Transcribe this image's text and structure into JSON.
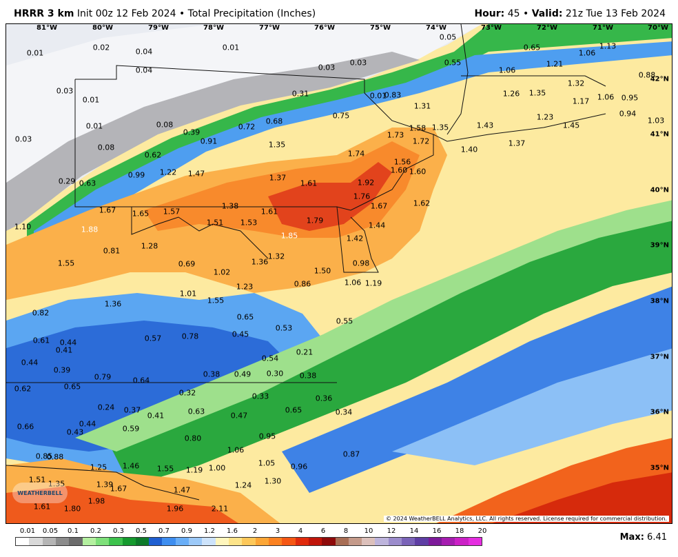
{
  "header": {
    "model": "HRRR 3 km",
    "init": "Init 00z 12 Feb 2024",
    "bullet": "•",
    "product": "Total Precipitation (Inches)",
    "hour_label": "Hour:",
    "hour_value": "45",
    "valid_label": "Valid:",
    "valid_value": "21z Tue 13 Feb 2024"
  },
  "longitude_ticks": [
    "81°W",
    "80°W",
    "79°W",
    "78°W",
    "77°W",
    "76°W",
    "75°W",
    "74°W",
    "73°W",
    "72°W",
    "71°W",
    "70°W"
  ],
  "latitude_ticks": [
    "42°N",
    "41°N",
    "40°N",
    "39°N",
    "38°N",
    "37°N",
    "36°N",
    "35°N"
  ],
  "precip_labels": [
    {
      "t": "0.01"
    },
    {
      "t": "0.02"
    },
    {
      "t": "0.04"
    },
    {
      "t": "0.01"
    },
    {
      "t": "0.05"
    },
    {
      "t": "0.65"
    },
    {
      "t": "1.06"
    },
    {
      "t": "1.13"
    },
    {
      "t": "0.04"
    },
    {
      "t": "0.03"
    },
    {
      "t": "0.03"
    },
    {
      "t": "0.55"
    },
    {
      "t": "1.06"
    },
    {
      "t": "1.21"
    },
    {
      "t": "0.88"
    },
    {
      "t": "0.03"
    },
    {
      "t": "0.01"
    },
    {
      "t": "0.31"
    },
    {
      "t": "0.83"
    },
    {
      "t": "1.26"
    },
    {
      "t": "1.35"
    },
    {
      "t": "1.32"
    },
    {
      "t": "1.31"
    },
    {
      "t": "1.17"
    },
    {
      "t": "1.06"
    },
    {
      "t": "0.95"
    },
    {
      "t": "0.94"
    },
    {
      "t": "1.03"
    },
    {
      "t": "0.01"
    },
    {
      "t": "0.01"
    },
    {
      "t": "0.08"
    },
    {
      "t": "0.39"
    },
    {
      "t": "0.72"
    },
    {
      "t": "0.68"
    },
    {
      "t": "0.75"
    },
    {
      "t": "1.35"
    },
    {
      "t": "1.43"
    },
    {
      "t": "1.23"
    },
    {
      "t": "1.45"
    },
    {
      "t": "0.03"
    },
    {
      "t": "0.91"
    },
    {
      "t": "1.73"
    },
    {
      "t": "1.58"
    },
    {
      "t": "1.72"
    },
    {
      "t": "1.37"
    },
    {
      "t": "1.40"
    },
    {
      "t": "0.08"
    },
    {
      "t": "0.62"
    },
    {
      "t": "1.35"
    },
    {
      "t": "1.74"
    },
    {
      "t": "1.56"
    },
    {
      "t": "1.60"
    },
    {
      "t": "1.60"
    },
    {
      "t": "0.99"
    },
    {
      "t": "1.22"
    },
    {
      "t": "1.47"
    },
    {
      "t": "0.29"
    },
    {
      "t": "0.63"
    },
    {
      "t": "1.37"
    },
    {
      "t": "1.61"
    },
    {
      "t": "1.92"
    },
    {
      "t": "1.76"
    },
    {
      "t": "1.67"
    },
    {
      "t": "1.62"
    },
    {
      "t": "1.67"
    },
    {
      "t": "1.65"
    },
    {
      "t": "1.57"
    },
    {
      "t": "1.38"
    },
    {
      "t": "1.61"
    },
    {
      "t": "1.10"
    },
    {
      "t": "1.88"
    },
    {
      "t": "1.51"
    },
    {
      "t": "1.53"
    },
    {
      "t": "1.79"
    },
    {
      "t": "1.44"
    },
    {
      "t": "1.85"
    },
    {
      "t": "1.42"
    },
    {
      "t": "1.28"
    },
    {
      "t": "0.81"
    },
    {
      "t": "1.32"
    },
    {
      "t": "1.55"
    },
    {
      "t": "0.69"
    },
    {
      "t": "1.36"
    },
    {
      "t": "0.98"
    },
    {
      "t": "1.02"
    },
    {
      "t": "1.50"
    },
    {
      "t": "1.23"
    },
    {
      "t": "0.86"
    },
    {
      "t": "1.06"
    },
    {
      "t": "1.19"
    },
    {
      "t": "1.01"
    },
    {
      "t": "1.55"
    },
    {
      "t": "1.36"
    },
    {
      "t": "0.82"
    },
    {
      "t": "0.65"
    },
    {
      "t": "0.55"
    },
    {
      "t": "0.53"
    },
    {
      "t": "0.45"
    },
    {
      "t": "0.61"
    },
    {
      "t": "0.44"
    },
    {
      "t": "0.57"
    },
    {
      "t": "0.78"
    },
    {
      "t": "0.41"
    },
    {
      "t": "0.21"
    },
    {
      "t": "0.54"
    },
    {
      "t": "0.44"
    },
    {
      "t": "0.39"
    },
    {
      "t": "0.79"
    },
    {
      "t": "0.64"
    },
    {
      "t": "0.38"
    },
    {
      "t": "0.49"
    },
    {
      "t": "0.30"
    },
    {
      "t": "0.38"
    },
    {
      "t": "0.62"
    },
    {
      "t": "0.65"
    },
    {
      "t": "0.32"
    },
    {
      "t": "0.33"
    },
    {
      "t": "0.36"
    },
    {
      "t": "0.24"
    },
    {
      "t": "0.37"
    },
    {
      "t": "0.41"
    },
    {
      "t": "0.63"
    },
    {
      "t": "0.47"
    },
    {
      "t": "0.65"
    },
    {
      "t": "0.34"
    },
    {
      "t": "0.66"
    },
    {
      "t": "0.44"
    },
    {
      "t": "0.43"
    },
    {
      "t": "0.59"
    },
    {
      "t": "0.80"
    },
    {
      "t": "0.95"
    },
    {
      "t": "1.06"
    },
    {
      "t": "0.87"
    },
    {
      "t": "0.85"
    },
    {
      "t": "0.88"
    },
    {
      "t": "1.25"
    },
    {
      "t": "1.46"
    },
    {
      "t": "1.55"
    },
    {
      "t": "1.19"
    },
    {
      "t": "1.00"
    },
    {
      "t": "1.05"
    },
    {
      "t": "0.96"
    },
    {
      "t": "1.51"
    },
    {
      "t": "1.35"
    },
    {
      "t": "1.39"
    },
    {
      "t": "1.67"
    },
    {
      "t": "1.47"
    },
    {
      "t": "1.24"
    },
    {
      "t": "1.30"
    },
    {
      "t": "1.98"
    },
    {
      "t": "1.61"
    },
    {
      "t": "1.80"
    },
    {
      "t": "1.96"
    },
    {
      "t": "2.11"
    }
  ],
  "legend": {
    "values": [
      "0.01",
      "0.05",
      "0.1",
      "0.2",
      "0.3",
      "0.5",
      "0.7",
      "0.9",
      "1.2",
      "1.6",
      "2",
      "3",
      "4",
      "6",
      "8",
      "10",
      "12",
      "14",
      "16",
      "18",
      "20"
    ],
    "colors": [
      "#ffffff",
      "#d9d9d9",
      "#b5b5b5",
      "#8c8c8c",
      "#6c6c6c",
      "#b4f0a0",
      "#7ee07a",
      "#3dc24d",
      "#159a2e",
      "#0d7a2a",
      "#1f5fd1",
      "#3e8ef0",
      "#69aef7",
      "#9cc9f8",
      "#cde3fb",
      "#fff6bd",
      "#fde48a",
      "#fdc85a",
      "#fca636",
      "#fb8120",
      "#f55714",
      "#e02a0c",
      "#c0150a",
      "#8e0a0a",
      "#a86e55",
      "#c49a8a",
      "#dcc0bb",
      "#bdb4dc",
      "#9b8ccc",
      "#7a63b8",
      "#5e3ea4",
      "#7d1a9a",
      "#a51db0",
      "#cb21c6",
      "#e52de0"
    ],
    "max_label": "Max:",
    "max_value": "6.41"
  },
  "copyright": "© 2024 WeatherBELL Analytics, LLC. All rights reserved. License required for commercial distribution.",
  "logo_text": "WEATHERBELL"
}
